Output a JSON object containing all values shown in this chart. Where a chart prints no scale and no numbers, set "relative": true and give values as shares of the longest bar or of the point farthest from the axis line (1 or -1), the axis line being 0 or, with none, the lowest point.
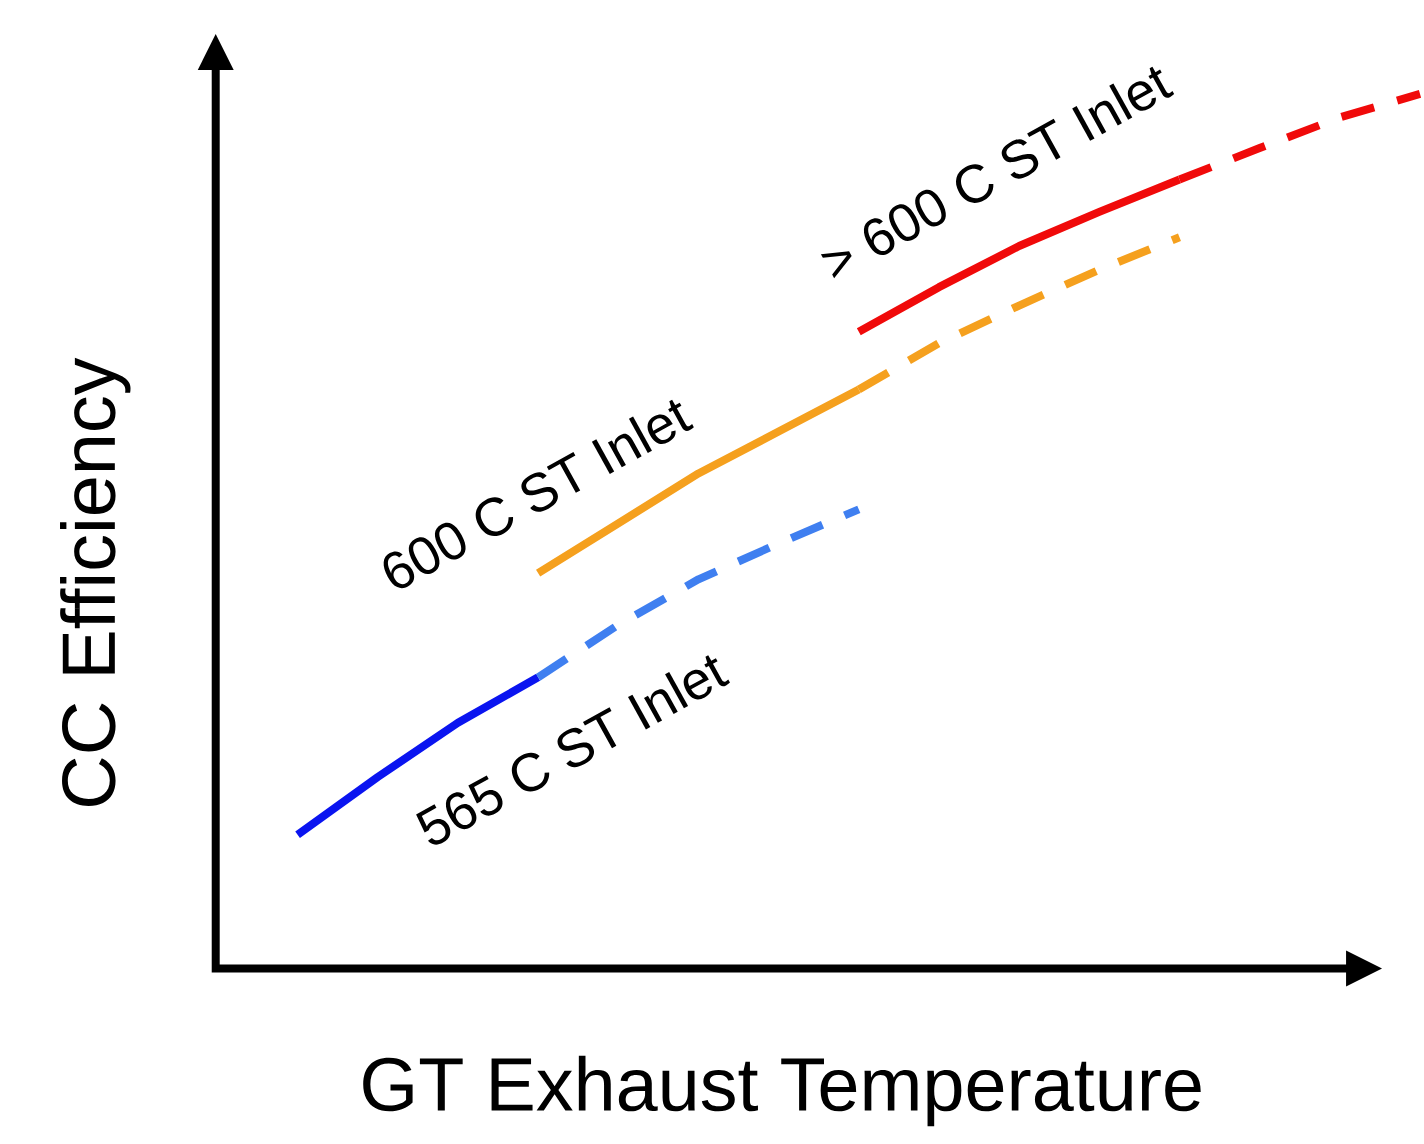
{
  "chart_data": {
    "type": "line",
    "relative": true,
    "xlabel": "GT Exhaust Temperature",
    "ylabel": "CC Efficiency",
    "categories": [
      null,
      null,
      null,
      null,
      null,
      null,
      null,
      null,
      null,
      null,
      null,
      null,
      null,
      null,
      null
    ],
    "series": [
      {
        "color": "#0a14f0",
        "line_style": "solid",
        "values": [
          0.153,
          0.219,
          0.281,
          0.333,
          null,
          null,
          null,
          null,
          null,
          null,
          null,
          null,
          null,
          null,
          null
        ]
      },
      {
        "color": "#3f7ff0",
        "line_style": "dashed",
        "values": [
          null,
          null,
          null,
          0.333,
          0.393,
          0.445,
          0.486,
          0.525,
          null,
          null,
          null,
          null,
          null,
          null,
          null
        ]
      },
      {
        "color": "#f5a01e",
        "line_style": "solid",
        "values": [
          null,
          null,
          null,
          0.452,
          0.509,
          0.566,
          0.614,
          0.662,
          null,
          null,
          null,
          null,
          null,
          null,
          null
        ]
      },
      {
        "color": "#f5a01e",
        "line_style": "dashed",
        "values": [
          null,
          null,
          null,
          null,
          null,
          null,
          null,
          0.662,
          0.715,
          0.758,
          0.799,
          0.836,
          null,
          null,
          null
        ]
      },
      {
        "color": "#f00a0a",
        "line_style": "solid",
        "values": [
          null,
          null,
          null,
          null,
          null,
          null,
          null,
          0.728,
          0.779,
          0.826,
          0.865,
          0.902,
          null,
          null,
          null
        ]
      },
      {
        "color": "#f00a0a",
        "line_style": "dashed",
        "values": [
          null,
          null,
          null,
          null,
          null,
          null,
          null,
          null,
          null,
          null,
          null,
          0.902,
          0.938,
          0.973,
          1.0
        ]
      }
    ],
    "annotations": [
      "565 C ST Inlet",
      "600 C ST Inlet",
      "> 600 C ST Inlet"
    ]
  }
}
